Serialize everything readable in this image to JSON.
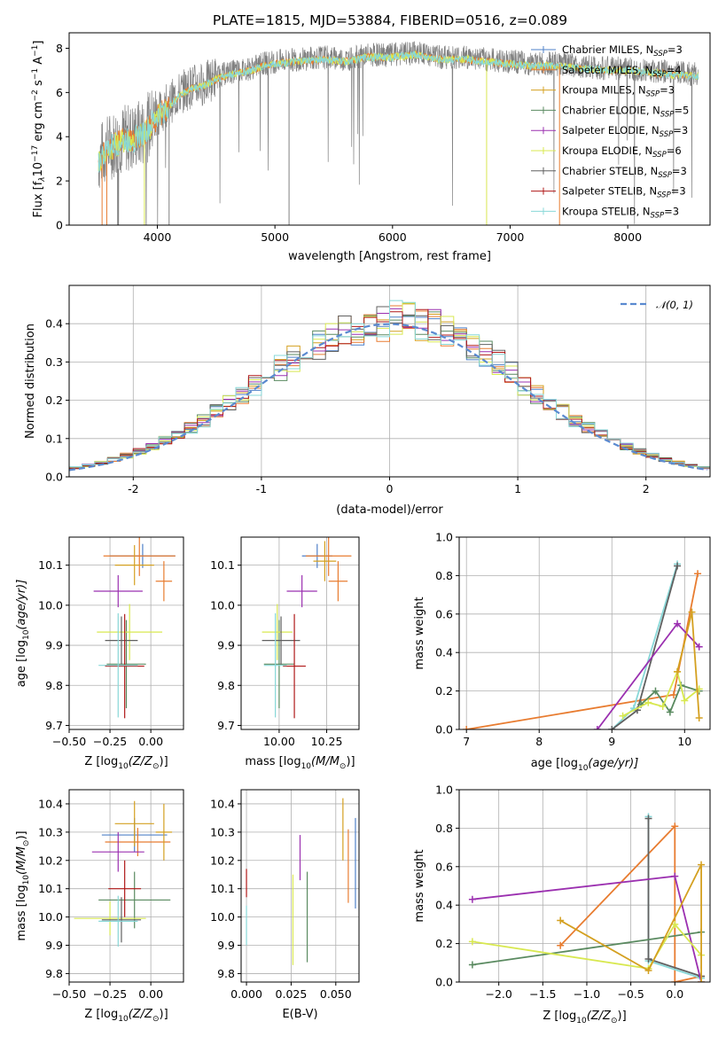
{
  "figure_title": "PLATE=1815, MJD=53884, FIBERID=0516, z=0.089",
  "series_legend": [
    {
      "label": "Chabrier MILES, N",
      "sub": "SSP",
      "count": "=3",
      "color": "#4f80c8"
    },
    {
      "label": "Salpeter MILES, N",
      "sub": "SSP",
      "count": "=4",
      "color": "#e87c30"
    },
    {
      "label": "Kroupa MILES, N",
      "sub": "SSP",
      "count": "=3",
      "color": "#d4a020"
    },
    {
      "label": "Chabrier ELODIE, N",
      "sub": "SSP",
      "count": "=5",
      "color": "#5a8a60"
    },
    {
      "label": "Salpeter ELODIE, N",
      "sub": "SSP",
      "count": "=3",
      "color": "#9b30b0"
    },
    {
      "label": "Kroupa ELODIE, N",
      "sub": "SSP",
      "count": "=6",
      "color": "#d8e850"
    },
    {
      "label": "Chabrier STELIB, N",
      "sub": "SSP",
      "count": "=3",
      "color": "#606060"
    },
    {
      "label": "Salpeter STELIB, N",
      "sub": "SSP",
      "count": "=3",
      "color": "#b01818"
    },
    {
      "label": "Kroupa STELIB, N",
      "sub": "SSP",
      "count": "=3",
      "color": "#88d8d8"
    }
  ],
  "chart_data": [
    {
      "id": "spectrum",
      "type": "line",
      "xlabel": "wavelength [Angstrom, rest frame]",
      "ylabel": "Flux [f",
      "ylabel_parts": [
        "Flux [f",
        "λ",
        "10",
        "−17",
        " erg cm",
        "−2",
        " s",
        "−1",
        " A",
        "−1",
        "]"
      ],
      "xlim": [
        3250,
        8700
      ],
      "ylim": [
        0,
        8.7
      ],
      "xticks": [
        4000,
        5000,
        6000,
        7000,
        8000
      ],
      "yticks": [
        0,
        2,
        4,
        6,
        8
      ],
      "grid": false,
      "legend_position": "right",
      "envelope": {
        "x": [
          3500,
          3600,
          3700,
          3800,
          3900,
          4000,
          4100,
          4200,
          4300,
          4400,
          4500,
          4600,
          4700,
          4800,
          4900,
          5000,
          5200,
          5400,
          5600,
          5800,
          6000,
          6200,
          6400,
          6600,
          6800,
          7000,
          7200,
          7400,
          7600,
          7800,
          8000,
          8200,
          8400,
          8600
        ],
        "y": [
          3.0,
          3.6,
          3.9,
          4.0,
          4.3,
          5.0,
          5.5,
          6.0,
          6.3,
          6.4,
          6.7,
          6.9,
          7.0,
          7.1,
          7.3,
          7.4,
          7.5,
          7.6,
          7.5,
          7.7,
          7.7,
          7.8,
          7.6,
          7.6,
          7.5,
          7.4,
          7.3,
          7.3,
          7.2,
          7.1,
          7.1,
          7.0,
          6.9,
          6.8
        ]
      },
      "data_label": "data",
      "data_color": "#808080",
      "model_colors": [
        "#e87c30",
        "#d8e850",
        "#88d8d8"
      ]
    },
    {
      "id": "residuals",
      "type": "step",
      "xlabel": "(data-model)/error",
      "ylabel": "Normed distribution",
      "xlim": [
        -2.5,
        2.5
      ],
      "ylim": [
        0,
        0.5
      ],
      "xticks": [
        -2,
        -1,
        0,
        1,
        2
      ],
      "yticks": [
        0.0,
        0.1,
        0.2,
        0.3,
        0.4
      ],
      "grid": true,
      "legend_position": "top-right",
      "legend_label": "𝒩(0, 1)",
      "reference_color": "#5a8ad0",
      "bin_width": 0.1
    },
    {
      "id": "age-vs-Z",
      "type": "errorbar",
      "xlabel": "Z [log",
      "xlabel_full": [
        "Z [log",
        "10",
        "(Z/Z",
        "⊙",
        ")]"
      ],
      "ylabel_full": [
        "age  [log",
        "10",
        "(age/yr)]"
      ],
      "xlim": [
        -0.5,
        0.2
      ],
      "ylim": [
        9.69,
        10.17
      ],
      "xticks": [
        -0.5,
        -0.25,
        0.0
      ],
      "xtick_labels": [
        "−0.50",
        "−0.25",
        "0.00"
      ],
      "yticks": [
        9.7,
        9.8,
        9.9,
        10.0,
        10.1
      ],
      "grid": true,
      "points": [
        {
          "x": -0.05,
          "y": 10.123,
          "xerr": 0.2,
          "yerr": 0.03,
          "series": 0
        },
        {
          "x": -0.07,
          "y": 10.123,
          "xerr": 0.22,
          "yerr": 0.05,
          "series": 1
        },
        {
          "x": -0.1,
          "y": 10.1,
          "xerr": 0.12,
          "yerr": 0.05,
          "series": 2
        },
        {
          "x": -0.15,
          "y": 9.853,
          "xerr": 0.12,
          "yerr": 0.11,
          "series": 3
        },
        {
          "x": -0.2,
          "y": 10.035,
          "xerr": 0.15,
          "yerr": 0.04,
          "series": 4
        },
        {
          "x": -0.13,
          "y": 9.933,
          "xerr": 0.2,
          "yerr": 0.07,
          "series": 5
        },
        {
          "x": -0.18,
          "y": 9.912,
          "xerr": 0.1,
          "yerr": 0.06,
          "series": 6
        },
        {
          "x": -0.16,
          "y": 9.848,
          "xerr": 0.12,
          "yerr": 0.13,
          "series": 7
        },
        {
          "x": -0.2,
          "y": 9.85,
          "xerr": 0.12,
          "yerr": 0.13,
          "series": 8
        },
        {
          "x": 0.08,
          "y": 10.06,
          "xerr": 0.05,
          "yerr": 0.05,
          "series": 1
        }
      ]
    },
    {
      "id": "age-vs-mass",
      "type": "errorbar",
      "xlabel_full": [
        "mass [log",
        "10",
        "(M/M",
        "⊙",
        ")]"
      ],
      "xlim": [
        9.8,
        10.42
      ],
      "ylim": [
        9.69,
        10.17
      ],
      "xticks": [
        10.0,
        10.25
      ],
      "xtick_labels": [
        "10.00",
        "10.25"
      ],
      "yticks": [
        9.7,
        9.8,
        9.9,
        10.0,
        10.1
      ],
      "grid": true,
      "points": [
        {
          "x": 10.2,
          "y": 10.123,
          "xerr": 0.08,
          "yerr": 0.03,
          "series": 0
        },
        {
          "x": 10.26,
          "y": 10.123,
          "xerr": 0.12,
          "yerr": 0.05,
          "series": 1
        },
        {
          "x": 10.24,
          "y": 10.11,
          "xerr": 0.06,
          "yerr": 0.05,
          "series": 2
        },
        {
          "x": 10.0,
          "y": 9.853,
          "xerr": 0.08,
          "yerr": 0.11,
          "series": 3
        },
        {
          "x": 10.12,
          "y": 10.035,
          "xerr": 0.08,
          "yerr": 0.04,
          "series": 4
        },
        {
          "x": 9.99,
          "y": 9.933,
          "xerr": 0.08,
          "yerr": 0.07,
          "series": 5
        },
        {
          "x": 10.01,
          "y": 9.912,
          "xerr": 0.1,
          "yerr": 0.06,
          "series": 6
        },
        {
          "x": 10.08,
          "y": 9.848,
          "xerr": 0.06,
          "yerr": 0.13,
          "series": 7
        },
        {
          "x": 9.98,
          "y": 9.85,
          "xerr": 0.06,
          "yerr": 0.13,
          "series": 8
        },
        {
          "x": 10.31,
          "y": 10.06,
          "xerr": 0.05,
          "yerr": 0.05,
          "series": 1
        }
      ]
    },
    {
      "id": "weight-vs-age",
      "type": "line",
      "xlabel_full": [
        "age  [log",
        "10",
        "(age/yr)]"
      ],
      "ylabel": "mass weight",
      "xlim": [
        6.9,
        10.35
      ],
      "ylim": [
        0,
        1.0
      ],
      "xticks": [
        7,
        8,
        9,
        10
      ],
      "yticks": [
        0.0,
        0.2,
        0.4,
        0.6,
        0.8,
        1.0
      ],
      "grid": true,
      "lines": [
        {
          "series": 1,
          "x": [
            7.0,
            9.85,
            10.18
          ],
          "y": [
            0.0,
            0.18,
            0.81
          ]
        },
        {
          "series": 8,
          "x": [
            9.0,
            9.3,
            9.9
          ],
          "y": [
            0.0,
            0.11,
            0.86
          ]
        },
        {
          "series": 6,
          "x": [
            9.0,
            9.35,
            9.9
          ],
          "y": [
            0.0,
            0.1,
            0.85
          ]
        },
        {
          "series": 4,
          "x": [
            8.8,
            9.9,
            10.2
          ],
          "y": [
            0.0,
            0.55,
            0.43
          ]
        },
        {
          "series": 3,
          "x": [
            9.4,
            9.6,
            9.8,
            9.95,
            10.2
          ],
          "y": [
            0.13,
            0.2,
            0.09,
            0.23,
            0.2
          ]
        },
        {
          "series": 5,
          "x": [
            9.15,
            9.5,
            9.7,
            9.9,
            10.0,
            10.2
          ],
          "y": [
            0.07,
            0.14,
            0.12,
            0.3,
            0.15,
            0.21
          ]
        },
        {
          "series": 2,
          "x": [
            9.9,
            10.1,
            10.2
          ],
          "y": [
            0.3,
            0.61,
            0.06
          ]
        }
      ]
    },
    {
      "id": "mass-vs-Z",
      "type": "errorbar",
      "xlabel_full": [
        "Z [log",
        "10",
        "(Z/Z",
        "⊙",
        ")]"
      ],
      "ylabel_full": [
        "mass [log",
        "10",
        "(M/M",
        "⊙",
        ")]"
      ],
      "xlim": [
        -0.5,
        0.2
      ],
      "ylim": [
        9.77,
        10.45
      ],
      "xticks": [
        -0.5,
        -0.25,
        0.0
      ],
      "xtick_labels": [
        "−0.50",
        "−0.25",
        "0.00"
      ],
      "yticks": [
        9.8,
        9.9,
        10.0,
        10.1,
        10.2,
        10.3,
        10.4
      ],
      "grid": true,
      "points": [
        {
          "x": -0.1,
          "y": 10.29,
          "xerr": 0.2,
          "yerr": 0.06,
          "series": 0
        },
        {
          "x": -0.08,
          "y": 10.265,
          "xerr": 0.2,
          "yerr": 0.05,
          "series": 1
        },
        {
          "x": -0.1,
          "y": 10.33,
          "xerr": 0.12,
          "yerr": 0.08,
          "series": 2
        },
        {
          "x": -0.1,
          "y": 10.06,
          "xerr": 0.22,
          "yerr": 0.1,
          "series": 3
        },
        {
          "x": -0.2,
          "y": 10.23,
          "xerr": 0.16,
          "yerr": 0.07,
          "series": 4
        },
        {
          "x": -0.25,
          "y": 9.995,
          "xerr": 0.22,
          "yerr": 0.06,
          "series": 5
        },
        {
          "x": -0.18,
          "y": 9.99,
          "xerr": 0.12,
          "yerr": 0.08,
          "series": 6
        },
        {
          "x": -0.16,
          "y": 10.1,
          "xerr": 0.1,
          "yerr": 0.1,
          "series": 7
        },
        {
          "x": -0.2,
          "y": 9.985,
          "xerr": 0.12,
          "yerr": 0.09,
          "series": 8
        },
        {
          "x": 0.08,
          "y": 10.3,
          "xerr": 0.05,
          "yerr": 0.1,
          "series": 2
        }
      ]
    },
    {
      "id": "mass-vs-ebv",
      "type": "errorbar",
      "xlabel": "E(B-V)",
      "xlim": [
        -0.003,
        0.063
      ],
      "ylim": [
        9.77,
        10.45
      ],
      "xticks": [
        0.0,
        0.025,
        0.05
      ],
      "xtick_labels": [
        "0.000",
        "0.025",
        "0.050"
      ],
      "yticks": [
        9.8,
        9.9,
        10.0,
        10.1,
        10.2,
        10.3,
        10.4
      ],
      "grid": true,
      "points": [
        {
          "x": 0.0,
          "y": 10.12,
          "yerr": 0.05,
          "series": 7
        },
        {
          "x": 0.0,
          "y": 9.97,
          "yerr": 0.07,
          "series": 8
        },
        {
          "x": 0.026,
          "y": 9.99,
          "yerr": 0.16,
          "series": 5
        },
        {
          "x": 0.03,
          "y": 10.21,
          "yerr": 0.08,
          "series": 4
        },
        {
          "x": 0.034,
          "y": 10.0,
          "yerr": 0.16,
          "series": 3
        },
        {
          "x": 0.054,
          "y": 10.31,
          "yerr": 0.11,
          "series": 2
        },
        {
          "x": 0.057,
          "y": 10.18,
          "yerr": 0.13,
          "series": 1
        },
        {
          "x": 0.061,
          "y": 10.19,
          "yerr": 0.16,
          "series": 0
        }
      ]
    },
    {
      "id": "weight-vs-Z",
      "type": "line",
      "xlabel_full": [
        "Z [log",
        "10",
        "(Z/Z",
        "⊙",
        ")]"
      ],
      "ylabel": "mass weight",
      "xlim": [
        -2.45,
        0.4
      ],
      "ylim": [
        0,
        1.0
      ],
      "xticks": [
        -2.0,
        -1.5,
        -1.0,
        -0.5,
        0.0
      ],
      "xtick_labels": [
        "−2.0",
        "−1.5",
        "−1.0",
        "−0.5",
        "0.0"
      ],
      "yticks": [
        0.0,
        0.2,
        0.4,
        0.6,
        0.8,
        1.0
      ],
      "grid": true,
      "lines": [
        {
          "series": 1,
          "x": [
            -1.3,
            0.0,
            0.0,
            0.3
          ],
          "y": [
            0.19,
            0.81,
            0.0,
            0.03
          ]
        },
        {
          "series": 8,
          "x": [
            -0.3,
            -0.3,
            0.3
          ],
          "y": [
            0.86,
            0.11,
            0.02
          ]
        },
        {
          "series": 6,
          "x": [
            -0.3,
            -0.3,
            0.3
          ],
          "y": [
            0.85,
            0.12,
            0.03
          ]
        },
        {
          "series": 4,
          "x": [
            -2.3,
            0.0,
            0.3
          ],
          "y": [
            0.43,
            0.55,
            0.0
          ]
        },
        {
          "series": 3,
          "x": [
            -2.3,
            0.3
          ],
          "y": [
            0.09,
            0.26
          ]
        },
        {
          "series": 5,
          "x": [
            -2.3,
            -0.3,
            0.0,
            0.3
          ],
          "y": [
            0.21,
            0.07,
            0.3,
            0.14
          ]
        },
        {
          "series": 2,
          "x": [
            -1.3,
            -0.3,
            0.3,
            0.3
          ],
          "y": [
            0.32,
            0.06,
            0.61,
            0.0
          ]
        }
      ]
    }
  ]
}
